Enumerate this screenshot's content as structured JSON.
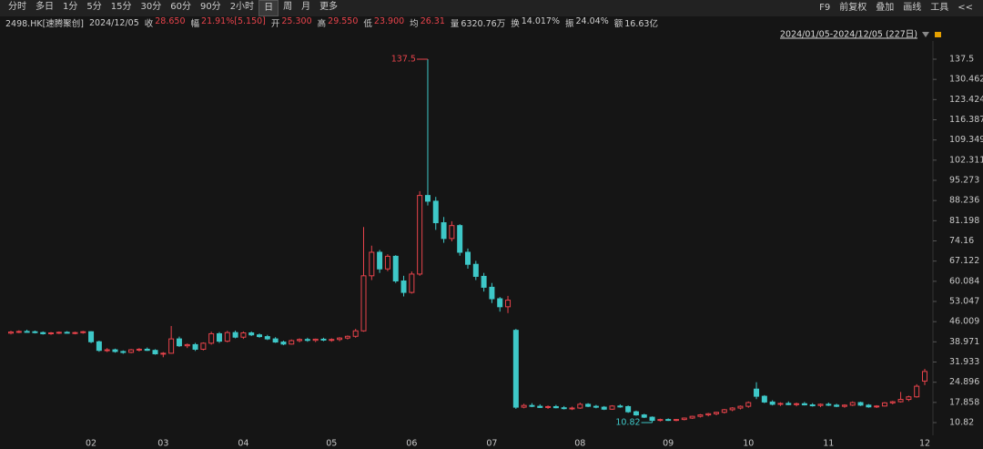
{
  "toolbar": {
    "left": [
      "分时",
      "多日",
      "1分",
      "5分",
      "15分",
      "30分",
      "60分",
      "90分",
      "2小时",
      "日",
      "周",
      "月",
      "更多"
    ],
    "selected": "日",
    "right": [
      "F9",
      "前复权",
      "叠加",
      "画线",
      "工具",
      "<<"
    ]
  },
  "info": {
    "symbol": "2498.HK[速腾聚创]",
    "date": "2024/12/05",
    "items": [
      {
        "label": "收",
        "value": "28.650",
        "color": "#e8434b"
      },
      {
        "label": "幅",
        "value": "21.91%[5.150]",
        "color": "#e8434b"
      },
      {
        "label": "开",
        "value": "25.300",
        "color": "#e8434b"
      },
      {
        "label": "高",
        "value": "29.550",
        "color": "#e8434b"
      },
      {
        "label": "低",
        "value": "23.900",
        "color": "#e8434b"
      },
      {
        "label": "均",
        "value": "26.31",
        "color": "#e8434b"
      },
      {
        "label": "量",
        "value": "6320.76万",
        "color": "#cfcfcf"
      },
      {
        "label": "换",
        "value": "14.017%",
        "color": "#cfcfcf"
      },
      {
        "label": "振",
        "value": "24.04%",
        "color": "#cfcfcf"
      },
      {
        "label": "额",
        "value": "16.63亿",
        "color": "#cfcfcf"
      }
    ]
  },
  "range": "2024/01/05-2024/12/05 (227日)",
  "chart_data": {
    "type": "candlestick",
    "up_color": "#e8434b",
    "down_color": "#3ec8c8",
    "annotations": {
      "max": "137.5",
      "min": "10.82"
    },
    "ylim": [
      6.38,
      145.44
    ],
    "yticks": [
      137.5,
      130.462,
      123.424,
      116.387,
      109.349,
      102.311,
      95.273,
      88.236,
      81.198,
      74.16,
      67.122,
      60.084,
      53.047,
      46.009,
      38.971,
      31.933,
      24.896,
      17.858,
      10.82
    ],
    "categories": [
      null,
      null,
      null,
      null,
      null,
      null,
      null,
      null,
      null,
      null,
      "02",
      null,
      null,
      null,
      null,
      null,
      null,
      null,
      null,
      "03",
      null,
      null,
      null,
      null,
      null,
      null,
      null,
      null,
      null,
      "04",
      null,
      null,
      null,
      null,
      null,
      null,
      null,
      null,
      null,
      null,
      "05",
      null,
      null,
      null,
      null,
      null,
      null,
      null,
      null,
      null,
      "06",
      null,
      null,
      null,
      null,
      null,
      null,
      null,
      null,
      null,
      "07",
      null,
      null,
      null,
      null,
      null,
      null,
      null,
      null,
      null,
      null,
      "08",
      null,
      null,
      null,
      null,
      null,
      null,
      null,
      null,
      null,
      null,
      "09",
      null,
      null,
      null,
      null,
      null,
      null,
      null,
      null,
      null,
      "10",
      null,
      null,
      null,
      null,
      null,
      null,
      null,
      null,
      null,
      "11",
      null,
      null,
      null,
      null,
      null,
      null,
      null,
      null,
      null,
      null,
      null,
      "12"
    ],
    "candles": [
      [
        42.0,
        42.8,
        41.6,
        42.4
      ],
      [
        42.4,
        43.0,
        42.0,
        42.6
      ],
      [
        42.6,
        43.2,
        42.2,
        42.5
      ],
      [
        42.5,
        42.9,
        41.9,
        42.2
      ],
      [
        42.2,
        42.6,
        41.5,
        41.8
      ],
      [
        41.8,
        42.4,
        41.4,
        42.1
      ],
      [
        42.1,
        42.6,
        41.7,
        42.3
      ],
      [
        42.3,
        42.7,
        41.9,
        42.0
      ],
      [
        42.0,
        42.5,
        41.6,
        42.2
      ],
      [
        42.2,
        42.8,
        41.8,
        42.5
      ],
      [
        42.5,
        42.7,
        38.5,
        39.0
      ],
      [
        39.0,
        39.4,
        35.5,
        36.0
      ],
      [
        36.0,
        36.8,
        35.4,
        36.2
      ],
      [
        36.2,
        36.6,
        35.2,
        35.6
      ],
      [
        35.6,
        36.0,
        34.8,
        35.3
      ],
      [
        35.3,
        36.5,
        35.0,
        36.2
      ],
      [
        36.2,
        36.8,
        35.6,
        36.4
      ],
      [
        36.4,
        37.0,
        35.8,
        36.0
      ],
      [
        36.0,
        36.4,
        34.5,
        34.8
      ],
      [
        34.8,
        35.4,
        33.6,
        35.0
      ],
      [
        35.0,
        44.5,
        34.8,
        40.0
      ],
      [
        40.0,
        40.8,
        37.2,
        37.6
      ],
      [
        37.6,
        38.4,
        36.8,
        38.0
      ],
      [
        38.0,
        38.6,
        35.8,
        36.4
      ],
      [
        36.4,
        38.8,
        36.0,
        38.5
      ],
      [
        38.5,
        42.5,
        38.0,
        41.8
      ],
      [
        41.8,
        42.4,
        38.6,
        39.2
      ],
      [
        39.2,
        42.8,
        38.8,
        42.2
      ],
      [
        42.2,
        42.9,
        40.2,
        40.6
      ],
      [
        40.6,
        42.6,
        40.0,
        42.1
      ],
      [
        42.1,
        42.6,
        41.0,
        41.4
      ],
      [
        41.4,
        41.9,
        40.4,
        40.8
      ],
      [
        40.8,
        41.4,
        39.6,
        40.0
      ],
      [
        40.0,
        40.6,
        38.6,
        38.9
      ],
      [
        38.9,
        39.4,
        37.8,
        38.2
      ],
      [
        38.2,
        39.8,
        38.0,
        39.4
      ],
      [
        39.4,
        40.2,
        38.8,
        39.8
      ],
      [
        39.8,
        40.4,
        39.0,
        39.5
      ],
      [
        39.5,
        40.1,
        38.9,
        39.9
      ],
      [
        39.9,
        40.4,
        39.2,
        39.6
      ],
      [
        39.6,
        40.2,
        39.0,
        39.8
      ],
      [
        39.8,
        40.6,
        39.2,
        40.3
      ],
      [
        40.3,
        41.2,
        39.8,
        40.9
      ],
      [
        40.9,
        43.5,
        40.4,
        42.8
      ],
      [
        42.8,
        79.0,
        42.5,
        62.0
      ],
      [
        62.0,
        72.5,
        60.5,
        70.2
      ],
      [
        70.2,
        71.0,
        63.0,
        64.4
      ],
      [
        64.4,
        69.5,
        63.6,
        68.8
      ],
      [
        68.8,
        69.2,
        59.5,
        60.2
      ],
      [
        60.2,
        62.0,
        54.8,
        56.2
      ],
      [
        56.2,
        63.5,
        55.8,
        62.6
      ],
      [
        62.6,
        91.5,
        62.0,
        90.0
      ],
      [
        90.0,
        137.5,
        86.5,
        88.0
      ],
      [
        88.0,
        89.5,
        78.0,
        80.5
      ],
      [
        80.5,
        82.5,
        73.5,
        75.0
      ],
      [
        75.0,
        81.0,
        74.0,
        79.5
      ],
      [
        79.5,
        80.0,
        69.0,
        70.2
      ],
      [
        70.2,
        71.5,
        64.5,
        66.0
      ],
      [
        66.0,
        67.2,
        60.5,
        61.8
      ],
      [
        61.8,
        63.0,
        56.5,
        58.0
      ],
      [
        58.0,
        59.5,
        52.5,
        54.0
      ],
      [
        54.0,
        54.6,
        49.5,
        51.2
      ],
      [
        51.2,
        55.0,
        49.0,
        53.5
      ],
      [
        43.0,
        43.5,
        15.6,
        16.2
      ],
      [
        16.2,
        17.4,
        15.8,
        16.8
      ],
      [
        16.8,
        17.6,
        16.2,
        16.5
      ],
      [
        16.5,
        17.2,
        15.9,
        16.1
      ],
      [
        16.1,
        16.8,
        15.6,
        16.4
      ],
      [
        16.4,
        17.0,
        15.8,
        16.0
      ],
      [
        16.0,
        16.6,
        15.4,
        15.7
      ],
      [
        15.7,
        16.4,
        15.2,
        15.9
      ],
      [
        15.9,
        17.8,
        15.6,
        17.2
      ],
      [
        17.2,
        17.6,
        16.2,
        16.5
      ],
      [
        16.5,
        17.0,
        15.8,
        16.2
      ],
      [
        16.2,
        16.6,
        15.2,
        15.5
      ],
      [
        15.5,
        16.9,
        15.3,
        16.6
      ],
      [
        16.6,
        17.2,
        16.0,
        16.4
      ],
      [
        16.4,
        16.8,
        14.2,
        14.6
      ],
      [
        14.6,
        15.0,
        13.2,
        13.5
      ],
      [
        13.5,
        13.9,
        12.4,
        12.7
      ],
      [
        12.7,
        13.0,
        10.82,
        11.6
      ],
      [
        11.6,
        12.2,
        11.2,
        11.9
      ],
      [
        11.9,
        12.3,
        11.4,
        11.7
      ],
      [
        11.7,
        12.1,
        11.3,
        11.9
      ],
      [
        11.9,
        12.6,
        11.6,
        12.4
      ],
      [
        12.4,
        13.2,
        12.1,
        13.0
      ],
      [
        13.0,
        13.8,
        12.6,
        13.5
      ],
      [
        13.5,
        14.2,
        13.0,
        13.9
      ],
      [
        13.9,
        14.6,
        13.4,
        14.4
      ],
      [
        14.4,
        15.6,
        14.0,
        15.3
      ],
      [
        15.3,
        16.2,
        14.8,
        15.9
      ],
      [
        15.9,
        16.8,
        15.4,
        16.5
      ],
      [
        16.5,
        18.2,
        16.0,
        17.8
      ],
      [
        22.5,
        24.9,
        19.0,
        20.0
      ],
      [
        20.0,
        20.4,
        17.6,
        18.0
      ],
      [
        18.0,
        18.6,
        16.8,
        17.2
      ],
      [
        17.2,
        17.9,
        16.6,
        17.5
      ],
      [
        17.5,
        18.2,
        16.9,
        17.1
      ],
      [
        17.1,
        17.8,
        16.5,
        17.4
      ],
      [
        17.4,
        18.0,
        16.8,
        17.0
      ],
      [
        17.0,
        17.6,
        16.4,
        16.8
      ],
      [
        16.8,
        17.5,
        16.2,
        17.2
      ],
      [
        17.2,
        17.8,
        16.6,
        16.9
      ],
      [
        16.9,
        17.4,
        16.2,
        16.5
      ],
      [
        16.5,
        17.2,
        16.0,
        16.9
      ],
      [
        16.9,
        18.2,
        16.6,
        17.8
      ],
      [
        17.8,
        18.1,
        16.6,
        16.9
      ],
      [
        16.9,
        17.3,
        16.0,
        16.3
      ],
      [
        16.3,
        16.9,
        15.9,
        16.6
      ],
      [
        16.6,
        18.0,
        16.4,
        17.7
      ],
      [
        17.7,
        18.4,
        17.2,
        18.1
      ],
      [
        18.1,
        21.5,
        17.8,
        18.9
      ],
      [
        18.9,
        20.2,
        18.3,
        19.8
      ],
      [
        19.8,
        24.2,
        19.5,
        23.5
      ],
      [
        25.3,
        29.55,
        23.9,
        28.65
      ]
    ]
  }
}
